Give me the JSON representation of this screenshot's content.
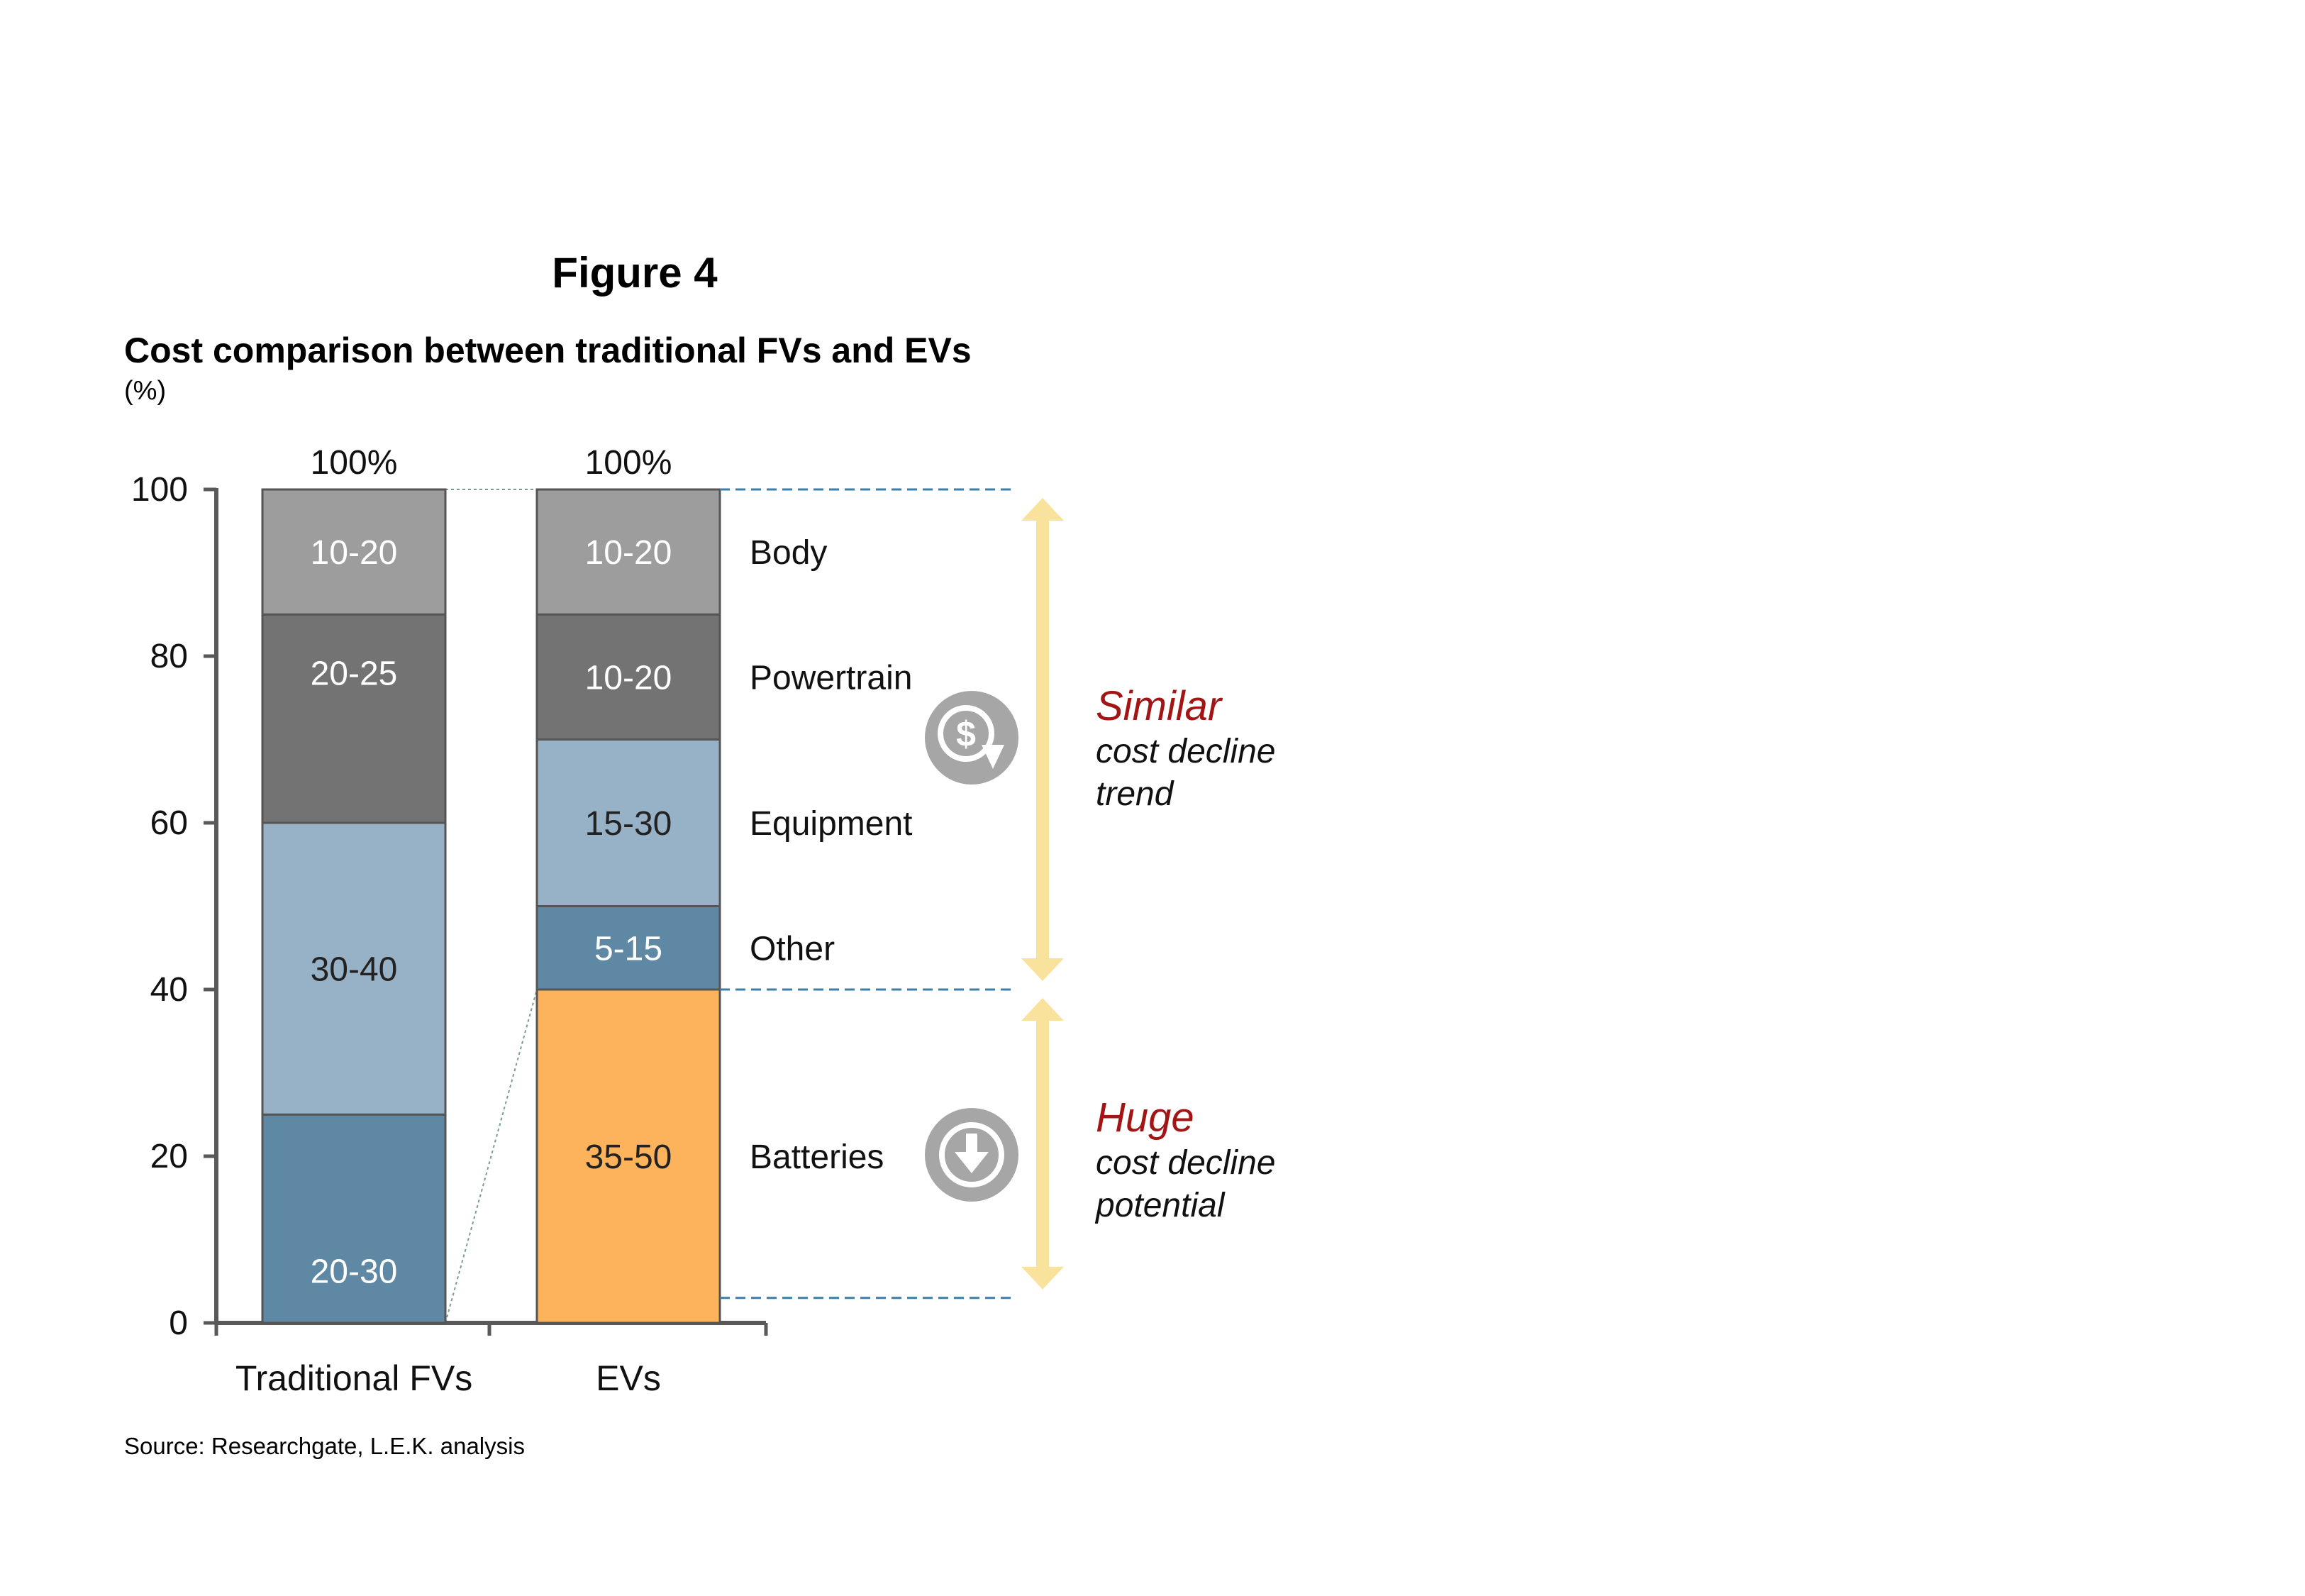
{
  "figure_label": "Figure 4",
  "title": "Cost comparison between traditional FVs and EVs",
  "unit": "(%)",
  "source": "Source: Researchgate, L.E.K. analysis",
  "chart_data": {
    "type": "bar",
    "stacked": true,
    "categories": [
      "Traditional FVs",
      "EVs"
    ],
    "totals": [
      "100%",
      "100%"
    ],
    "ylim": [
      0,
      100
    ],
    "yticks": [
      0,
      20,
      40,
      60,
      80,
      100
    ],
    "series": [
      {
        "name": "Batteries",
        "values": [
          0,
          40
        ],
        "labels": [
          "",
          "35-50"
        ],
        "color": "#fdb35c",
        "text_color": "#222222"
      },
      {
        "name": "Other",
        "values": [
          25,
          10
        ],
        "labels": [
          "20-30",
          "5-15"
        ],
        "color": "#5e88a4",
        "text_color": "#ffffff"
      },
      {
        "name": "Equipment",
        "values": [
          35,
          20
        ],
        "labels": [
          "30-40",
          "15-30"
        ],
        "color": "#97b2c6",
        "text_color": "#222222"
      },
      {
        "name": "Powertrain",
        "values": [
          25,
          15
        ],
        "labels": [
          "20-25",
          "10-20"
        ],
        "color": "#737373",
        "text_color": "#ffffff"
      },
      {
        "name": "Body",
        "values": [
          15,
          15
        ],
        "labels": [
          "10-20",
          "10-20"
        ],
        "color": "#9d9d9d",
        "text_color": "#ffffff"
      }
    ],
    "annotations": [
      {
        "emphasis": "Similar",
        "text_lines": [
          "cost decline",
          "trend"
        ],
        "icon": "dollar-down-icon",
        "color": "#a31515",
        "range": [
          40,
          100
        ]
      },
      {
        "emphasis": "Huge",
        "text_lines": [
          "cost decline",
          "potential"
        ],
        "icon": "arrow-down-circle-icon",
        "color": "#a31515",
        "range": [
          3,
          40
        ]
      }
    ],
    "colors": {
      "axis": "#595959",
      "dashed": "#3c7ea8",
      "arrow": "#f9e29c",
      "icon": "#a6a6a6"
    }
  }
}
